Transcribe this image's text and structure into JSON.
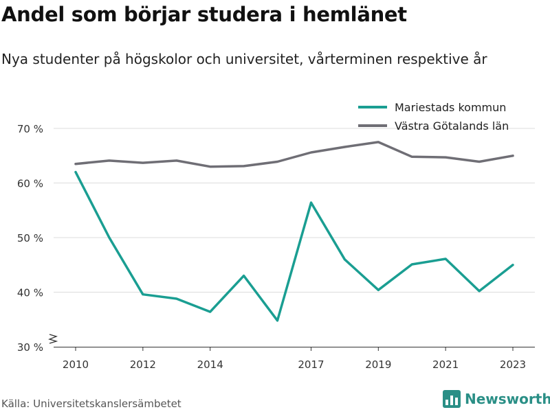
{
  "header": {
    "title": "Andel som börjar studera i hemlänet",
    "subtitle": "Nya studenter på högskolor och universitet, vårterminen respektive år"
  },
  "footer": {
    "source": "Källa: Universitetskanslersämbetet",
    "brand": "Newsworthy",
    "brand_icon": "newsworthy-logo-icon"
  },
  "chart_data": {
    "type": "line",
    "x": [
      2010,
      2011,
      2012,
      2013,
      2014,
      2015,
      2016,
      2017,
      2018,
      2019,
      2020,
      2021,
      2022,
      2023
    ],
    "x_ticks": [
      2010,
      2012,
      2014,
      2017,
      2019,
      2021,
      2023
    ],
    "y_ticks": [
      30,
      40,
      50,
      60,
      70
    ],
    "y_tick_suffix": " %",
    "ylim": [
      30,
      70
    ],
    "y_axis_break": true,
    "grid": true,
    "legend_position": "top-right",
    "series": [
      {
        "name": "Mariestads kommun",
        "color": "#1a9e92",
        "values": [
          62.0,
          50.0,
          39.6,
          38.8,
          36.4,
          43.0,
          34.8,
          56.4,
          46.0,
          40.4,
          45.1,
          46.1,
          40.2,
          45.0
        ]
      },
      {
        "name": "Västra Götalands län",
        "color": "#6f6e75",
        "values": [
          63.5,
          64.1,
          63.7,
          64.1,
          63.0,
          63.1,
          63.9,
          65.6,
          66.6,
          67.5,
          64.8,
          64.7,
          63.9,
          65.0
        ]
      }
    ]
  }
}
